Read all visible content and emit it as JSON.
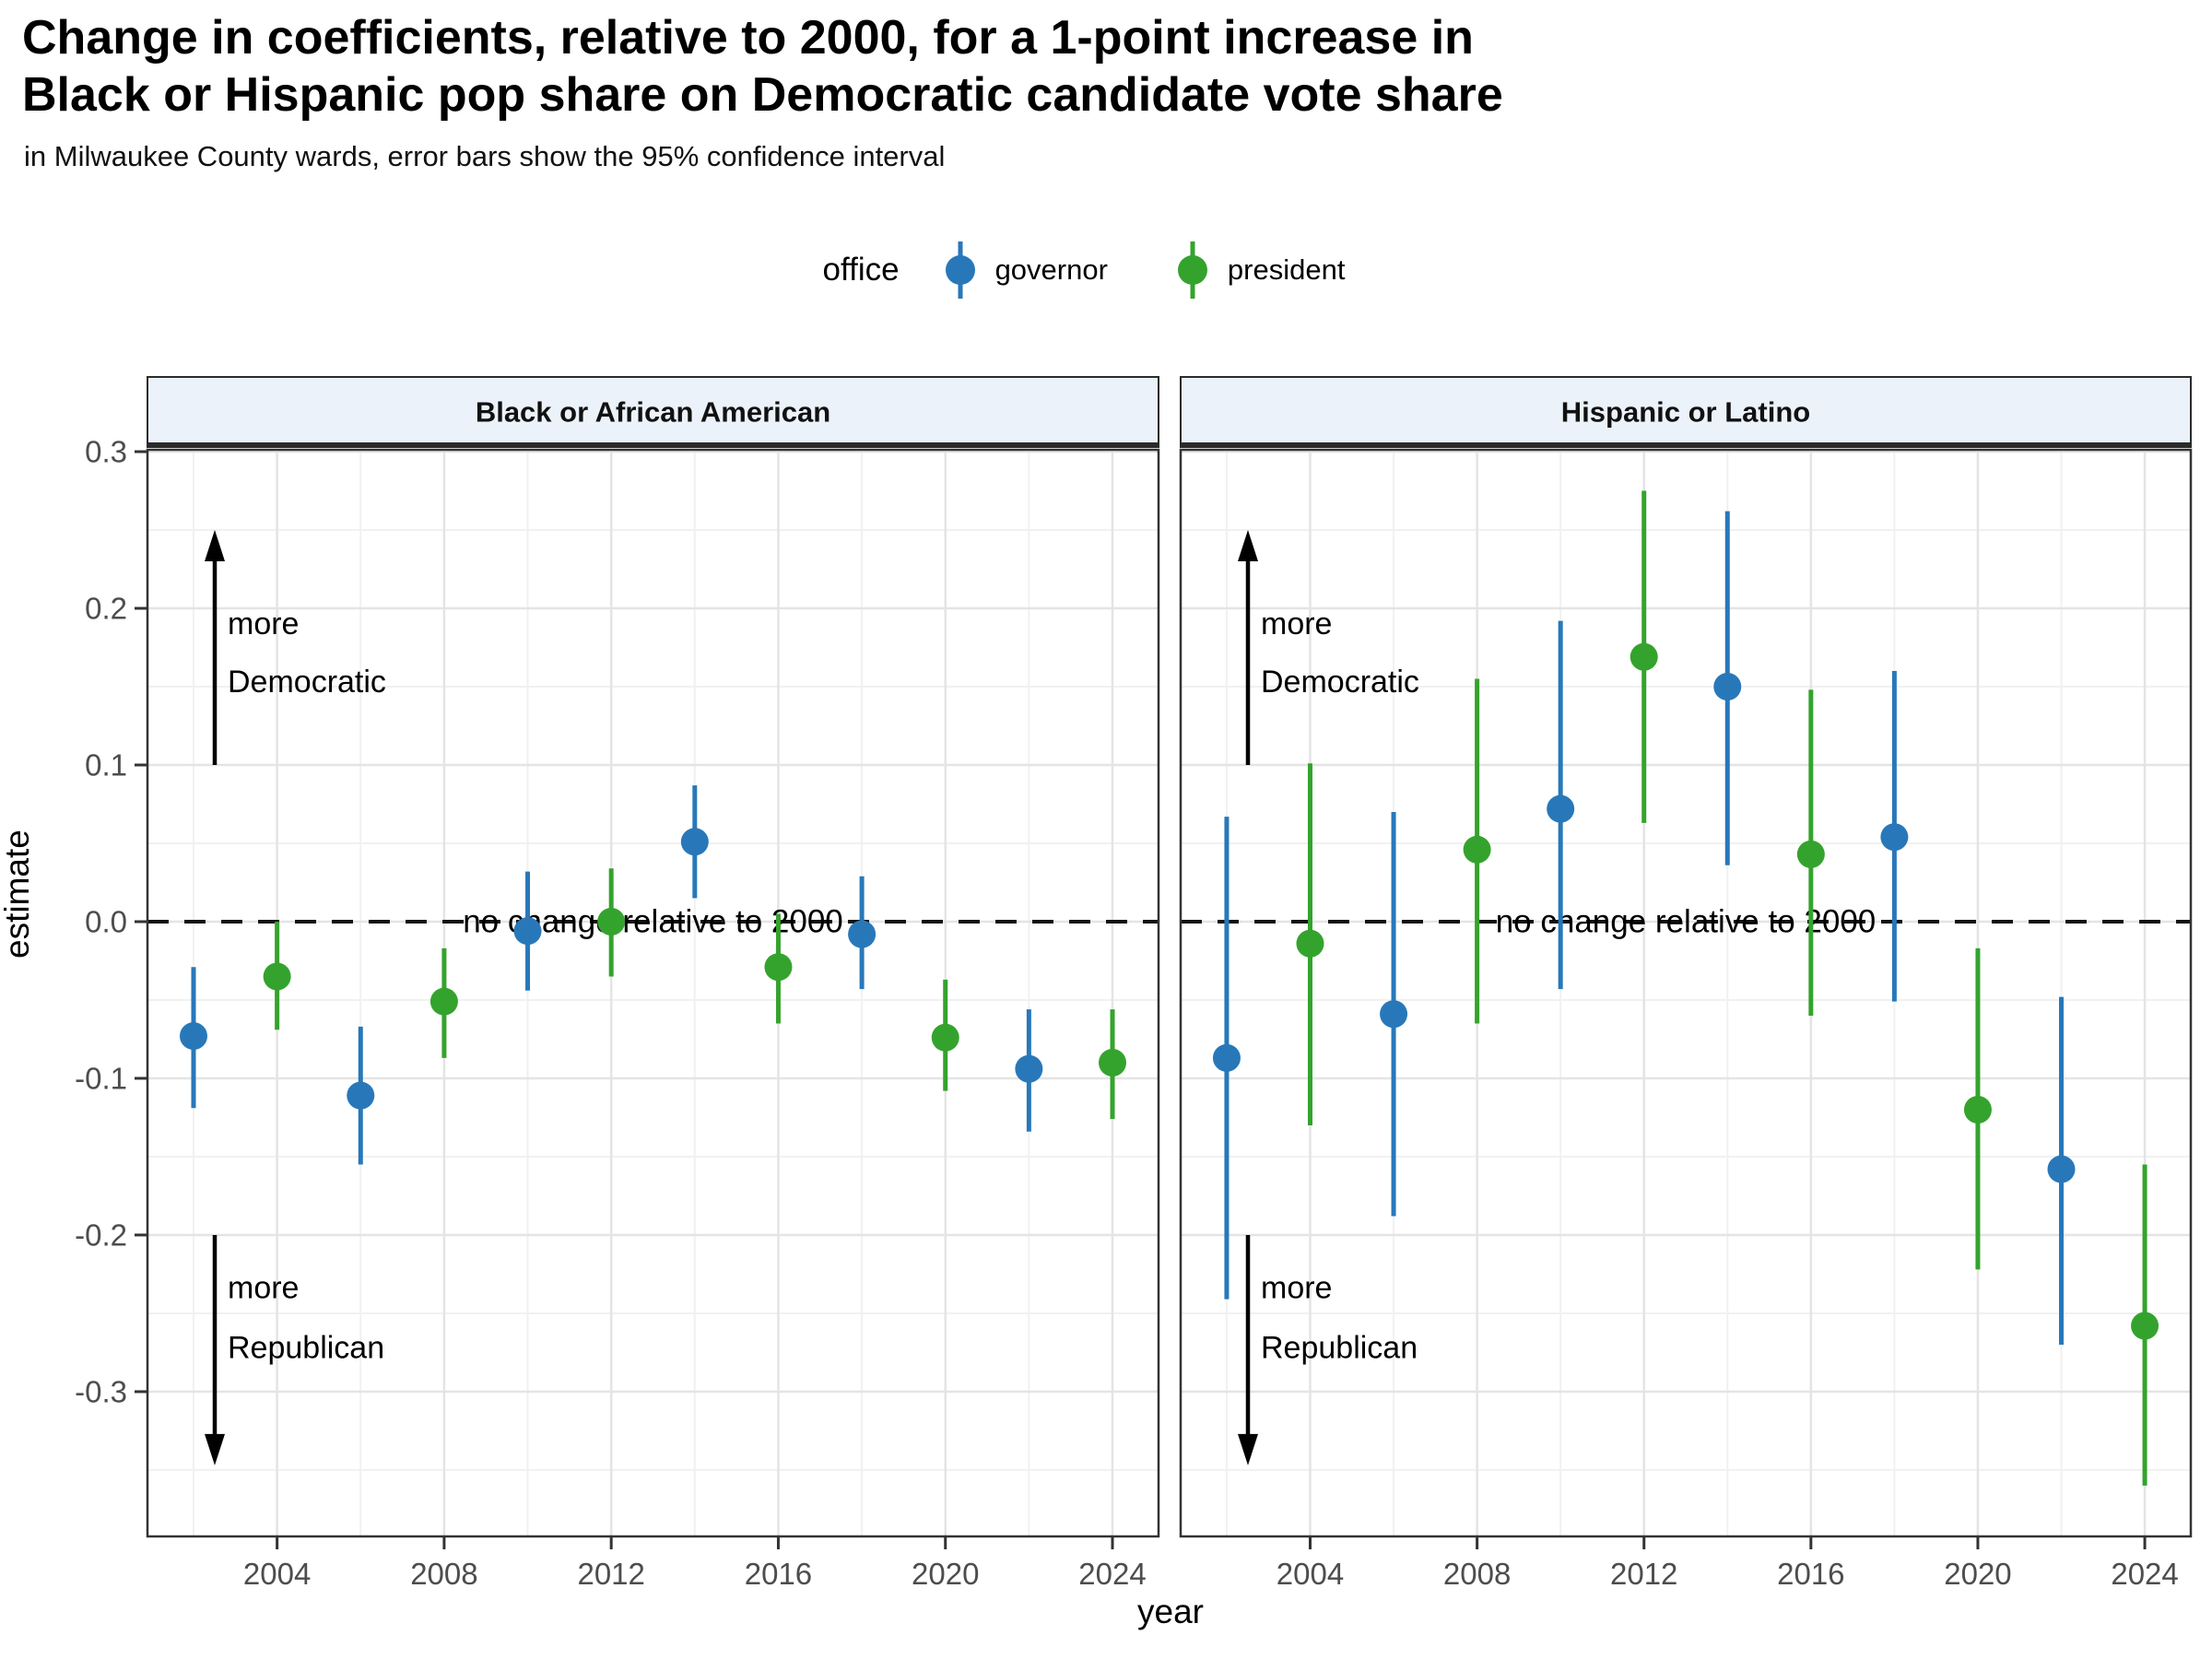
{
  "title": {
    "line1": "Change in coefficients, relative to 2000, for a 1-point increase in",
    "line2": "Black or Hispanic pop share on Democratic candidate vote share"
  },
  "subtitle": "in Milwaukee County wards, error bars show the 95% confidence interval",
  "legend": {
    "title": "office",
    "items": [
      {
        "label": "governor",
        "color": "#2878B9"
      },
      {
        "label": "president",
        "color": "#34A32D"
      }
    ]
  },
  "axis": {
    "x_title": "year",
    "y_title": "estimate"
  },
  "colors": {
    "governor": "#2878B9",
    "president": "#34A32D",
    "strip_fill": "#EBF2FA",
    "panel_border": "#333333",
    "grid_major": "#E4E4E4",
    "grid_minor": "#F1F1F1",
    "tick_label": "#4D4D4D",
    "annotation": "#000000"
  },
  "chart_data": {
    "type": "scatter",
    "subtype": "pointrange-facets",
    "xlabel": "year",
    "ylabel": "estimate",
    "xlim": [
      2000.897,
      2025.103
    ],
    "ylim": [
      -0.3924,
      0.3012
    ],
    "x_ticks": [
      2004,
      2008,
      2012,
      2016,
      2020,
      2024
    ],
    "x_minor": [
      2002,
      2006,
      2010,
      2014,
      2018,
      2022
    ],
    "y_ticks": [
      0.3,
      0.2,
      0.1,
      0.0,
      -0.1,
      -0.2,
      -0.3
    ],
    "y_minor": [
      0.25,
      0.15,
      0.05,
      -0.05,
      -0.15,
      -0.25,
      -0.35
    ],
    "grid": true,
    "legend_position": "top",
    "reference_line": {
      "y": 0.0,
      "label": "no change relative to 2000"
    },
    "annotations": {
      "up": {
        "lines": [
          "more",
          "Democratic"
        ],
        "arrow_start": 0.1,
        "arrow_end": 0.25,
        "text_y": [
          0.19,
          0.153
        ]
      },
      "down": {
        "lines": [
          "more",
          "Republican"
        ],
        "arrow_start": -0.2,
        "arrow_end": -0.347,
        "text_y": [
          -0.234,
          -0.272
        ]
      }
    },
    "facets": [
      {
        "label": "Black or African American",
        "points": [
          {
            "year": 2002,
            "office": "governor",
            "estimate": -0.073,
            "lo": -0.119,
            "hi": -0.029
          },
          {
            "year": 2004,
            "office": "president",
            "estimate": -0.035,
            "lo": -0.069,
            "hi": 0.0
          },
          {
            "year": 2006,
            "office": "governor",
            "estimate": -0.111,
            "lo": -0.155,
            "hi": -0.067
          },
          {
            "year": 2008,
            "office": "president",
            "estimate": -0.051,
            "lo": -0.087,
            "hi": -0.017
          },
          {
            "year": 2010,
            "office": "governor",
            "estimate": -0.006,
            "lo": -0.044,
            "hi": 0.032
          },
          {
            "year": 2012,
            "office": "president",
            "estimate": 0.0,
            "lo": -0.035,
            "hi": 0.034
          },
          {
            "year": 2014,
            "office": "governor",
            "estimate": 0.051,
            "lo": 0.015,
            "hi": 0.087
          },
          {
            "year": 2016,
            "office": "president",
            "estimate": -0.029,
            "lo": -0.065,
            "hi": 0.005
          },
          {
            "year": 2018,
            "office": "governor",
            "estimate": -0.008,
            "lo": -0.043,
            "hi": 0.029
          },
          {
            "year": 2020,
            "office": "president",
            "estimate": -0.074,
            "lo": -0.108,
            "hi": -0.037
          },
          {
            "year": 2022,
            "office": "governor",
            "estimate": -0.094,
            "lo": -0.134,
            "hi": -0.056
          },
          {
            "year": 2024,
            "office": "president",
            "estimate": -0.09,
            "lo": -0.126,
            "hi": -0.056
          }
        ]
      },
      {
        "label": "Hispanic or Latino",
        "points": [
          {
            "year": 2002,
            "office": "governor",
            "estimate": -0.087,
            "lo": -0.241,
            "hi": 0.067
          },
          {
            "year": 2004,
            "office": "president",
            "estimate": -0.014,
            "lo": -0.13,
            "hi": 0.101
          },
          {
            "year": 2006,
            "office": "governor",
            "estimate": -0.059,
            "lo": -0.188,
            "hi": 0.07
          },
          {
            "year": 2008,
            "office": "president",
            "estimate": 0.046,
            "lo": -0.065,
            "hi": 0.155
          },
          {
            "year": 2010,
            "office": "governor",
            "estimate": 0.072,
            "lo": -0.043,
            "hi": 0.192
          },
          {
            "year": 2012,
            "office": "president",
            "estimate": 0.169,
            "lo": 0.063,
            "hi": 0.275
          },
          {
            "year": 2014,
            "office": "governor",
            "estimate": 0.15,
            "lo": 0.036,
            "hi": 0.262
          },
          {
            "year": 2016,
            "office": "president",
            "estimate": 0.043,
            "lo": -0.06,
            "hi": 0.148
          },
          {
            "year": 2018,
            "office": "governor",
            "estimate": 0.054,
            "lo": -0.051,
            "hi": 0.16
          },
          {
            "year": 2020,
            "office": "president",
            "estimate": -0.12,
            "lo": -0.222,
            "hi": -0.017
          },
          {
            "year": 2022,
            "office": "governor",
            "estimate": -0.158,
            "lo": -0.27,
            "hi": -0.048
          },
          {
            "year": 2024,
            "office": "president",
            "estimate": -0.258,
            "lo": -0.36,
            "hi": -0.155
          }
        ]
      }
    ]
  }
}
